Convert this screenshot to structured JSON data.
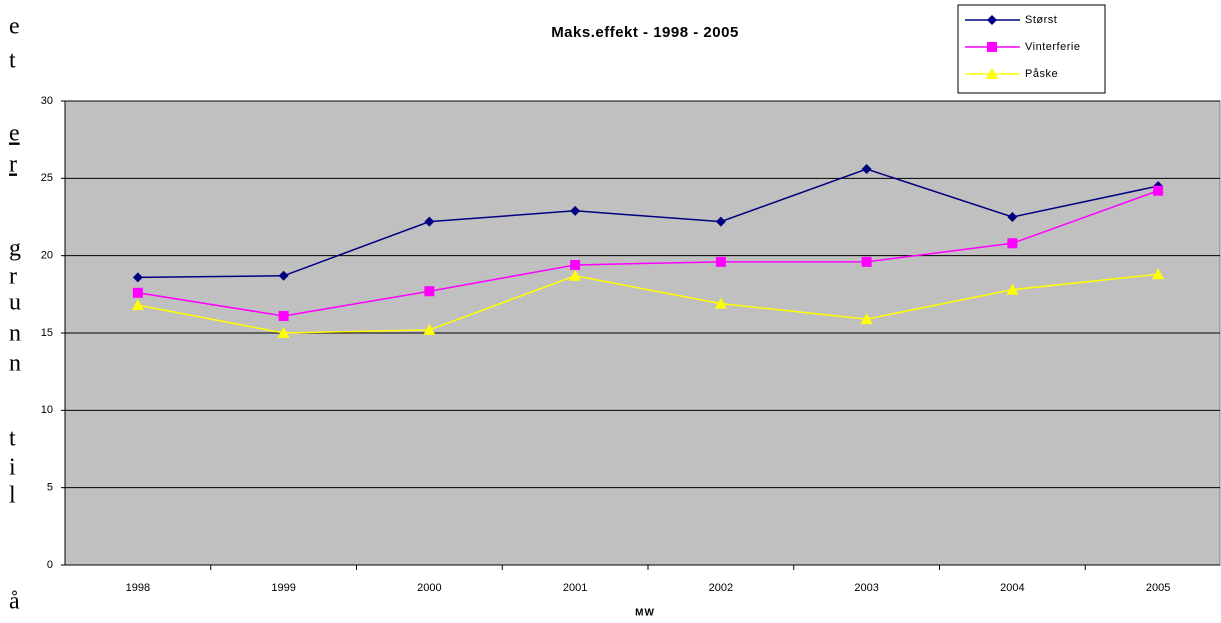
{
  "side_text": [
    "e",
    "t",
    "e",
    "r",
    "g",
    "r",
    "u",
    "n",
    "n",
    "t",
    "i",
    "l",
    "å"
  ],
  "chart_data": {
    "type": "line",
    "title": "Maks.effekt - 1998 - 2005",
    "x_label": "MW",
    "categories": [
      "1998",
      "1999",
      "2000",
      "2001",
      "2002",
      "2003",
      "2004",
      "2005"
    ],
    "series": [
      {
        "name": "Størst",
        "color": "#000080",
        "marker": "diamond",
        "values": [
          18.6,
          18.7,
          22.2,
          22.9,
          22.2,
          25.6,
          22.5,
          24.5
        ]
      },
      {
        "name": "Vinterferie",
        "color": "#ff00ff",
        "marker": "square",
        "values": [
          17.6,
          16.1,
          17.7,
          19.4,
          19.6,
          19.6,
          20.8,
          24.2
        ]
      },
      {
        "name": "Påske",
        "color": "#ffff00",
        "marker": "triangle",
        "values": [
          16.8,
          15.0,
          15.2,
          18.7,
          16.9,
          15.9,
          17.8,
          18.8
        ]
      }
    ],
    "ylim": [
      0,
      30
    ],
    "yticks": [
      0,
      5,
      10,
      15,
      20,
      25,
      30
    ],
    "grid": true,
    "plot_background": "#c0c0c0"
  }
}
